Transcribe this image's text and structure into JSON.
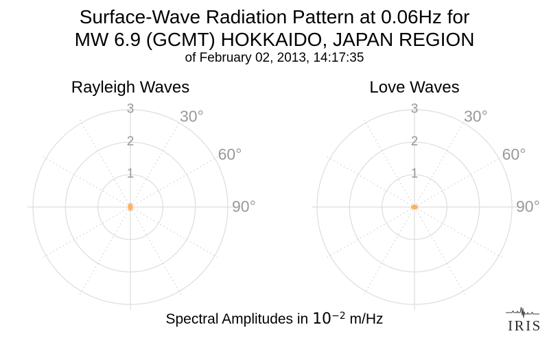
{
  "header": {
    "title_line1": "Surface-Wave Radiation Pattern at 0.06Hz for",
    "title_line2": "MW 6.9 (GCMT) HOKKAIDO, JAPAN REGION",
    "subtitle": "of February 02, 2013, 14:17:35"
  },
  "footer": {
    "caption_prefix": "Spectral Amplitudes in ",
    "caption_base": "10",
    "caption_exponent": "−2",
    "caption_suffix": " m/Hz",
    "logo_text": "IRIS"
  },
  "style": {
    "grid_color": "#DDDDDD",
    "grid_dotted_color": "#D4D4D4",
    "tick_label_color": "#999999",
    "title_color": "#000000",
    "pattern_dot_color": "#FBB464",
    "logo_color": "#2B2B2B",
    "background": "#FFFFFF"
  },
  "chart_data": [
    {
      "type": "polar",
      "title": "Rayleigh Waves",
      "wave_type": "Rayleigh",
      "r_ticks": [
        1,
        2,
        3
      ],
      "r_max": 3,
      "r_axis_unit": "10^-2 m/Hz",
      "theta_labels": [
        {
          "angle_deg": 30,
          "label": "30°"
        },
        {
          "angle_deg": 60,
          "label": "60°"
        },
        {
          "angle_deg": 90,
          "label": "90°"
        }
      ],
      "solid_spoke_angles_deg": [
        0,
        90,
        180,
        270
      ],
      "dotted_spoke_angles_deg": [
        30,
        60,
        120,
        150,
        210,
        240,
        300,
        330
      ],
      "grid": true,
      "pattern": {
        "description": "near-zero spectral amplitude at all azimuths; rendered as a tiny dot at the origin, slightly elongated vertically",
        "max_amplitude_data_units": 0.12,
        "rx_data_units": 0.08,
        "ry_data_units": 0.12
      }
    },
    {
      "type": "polar",
      "title": "Love Waves",
      "wave_type": "Love",
      "r_ticks": [
        1,
        2,
        3
      ],
      "r_max": 3,
      "r_axis_unit": "10^-2 m/Hz",
      "theta_labels": [
        {
          "angle_deg": 30,
          "label": "30°"
        },
        {
          "angle_deg": 60,
          "label": "60°"
        },
        {
          "angle_deg": 90,
          "label": "90°"
        }
      ],
      "solid_spoke_angles_deg": [
        0,
        90,
        180,
        270
      ],
      "dotted_spoke_angles_deg": [
        30,
        60,
        120,
        150,
        210,
        240,
        300,
        330
      ],
      "grid": true,
      "pattern": {
        "description": "near-zero spectral amplitude at all azimuths; rendered as a tiny dot at the origin, slightly elongated horizontally",
        "max_amplitude_data_units": 0.11,
        "rx_data_units": 0.11,
        "ry_data_units": 0.08
      }
    }
  ]
}
